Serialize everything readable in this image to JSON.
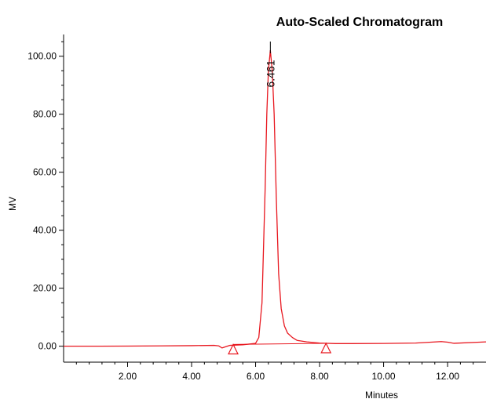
{
  "chart_data": {
    "type": "line",
    "title": "Auto-Scaled Chromatogram",
    "xlabel": "Minutes",
    "ylabel": "MV",
    "xlim": [
      0.0,
      13.2
    ],
    "ylim": [
      -5.5,
      107.5
    ],
    "x_ticks": [
      2.0,
      4.0,
      6.0,
      8.0,
      10.0,
      12.0
    ],
    "x_tick_labels": [
      "2.00",
      "4.00",
      "6.00",
      "8.00",
      "10.00",
      "12.00"
    ],
    "y_ticks": [
      0.0,
      20.0,
      40.0,
      60.0,
      80.0,
      100.0
    ],
    "y_tick_labels": [
      "0.00",
      "20.00",
      "40.00",
      "60.00",
      "80.00",
      "100.00"
    ],
    "grid": false,
    "line_color": "#e8171f",
    "series": [
      {
        "x": [
          0.0,
          1.0,
          2.0,
          3.0,
          4.0,
          4.7,
          4.85,
          4.95,
          5.2,
          5.6,
          6.0,
          6.1,
          6.2,
          6.3,
          6.35,
          6.4,
          6.461,
          6.52,
          6.58,
          6.65,
          6.72,
          6.8,
          6.9,
          7.0,
          7.15,
          7.3,
          7.6,
          8.0,
          8.5,
          9.0,
          10.0,
          11.0,
          11.8,
          12.0,
          12.2,
          13.0,
          13.2
        ],
        "y": [
          0.0,
          0.0,
          0.05,
          0.1,
          0.2,
          0.3,
          0.1,
          -0.6,
          0.3,
          0.5,
          1.0,
          3.0,
          15.0,
          55.0,
          80.0,
          95.0,
          102.0,
          95.0,
          80.0,
          50.0,
          25.0,
          13.0,
          7.0,
          4.5,
          3.0,
          2.0,
          1.5,
          1.1,
          0.9,
          0.9,
          0.95,
          1.1,
          1.6,
          1.4,
          1.0,
          1.4,
          1.5
        ]
      }
    ],
    "peak_label": {
      "x": 6.461,
      "text": "6.461"
    },
    "baseline_markers": [
      {
        "x": 5.3,
        "y": -1.3
      },
      {
        "x": 8.2,
        "y": -0.9
      }
    ],
    "integration_baseline": {
      "x": [
        5.3,
        8.2
      ],
      "y": [
        0.6,
        1.0
      ]
    }
  }
}
